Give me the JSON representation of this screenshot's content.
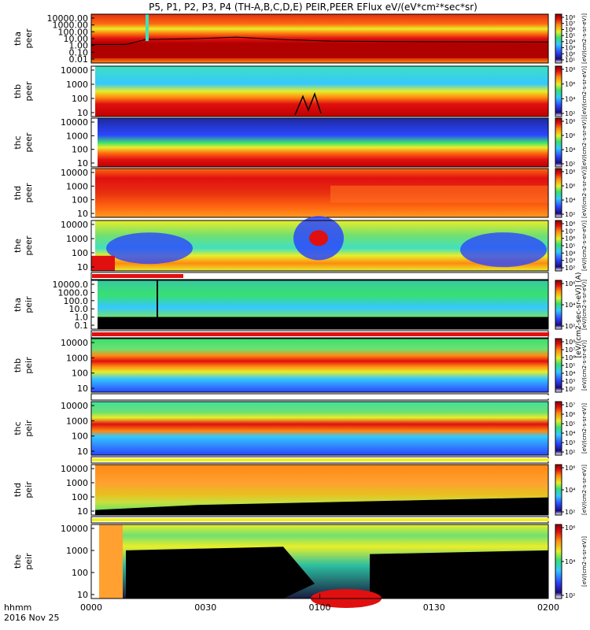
{
  "chart_data": {
    "type": "heatmap",
    "title": "P5, P1, P2, P3, P4 (TH-A,B,C,D,E) PEIR,PEER EFlux eV/(eV*cm²*sec*sr)",
    "x_time_ticks": [
      "0000",
      "0030",
      "0100",
      "0130",
      "0200"
    ],
    "x_axis_label": "hhmm",
    "x_axis_date": "2016 Nov 25",
    "colorbar_unit_label": "[eV/(cm2-s-sr-eV)]",
    "colorbar_side_label": "[eV/(cm2-sec-sr-eV)] (A)",
    "panels": [
      {
        "probe": "tha",
        "species": "peer",
        "yticks": [
          "10000.00",
          "1000.00",
          "100.00",
          "10.00",
          "1.00",
          "0.10",
          "0.01"
        ],
        "cbticks": [
          "10⁸",
          "10⁷",
          "10⁶",
          "10⁵",
          "10⁴",
          "10³",
          "10²",
          "10¹"
        ],
        "cbmin": 1,
        "cbmax": 8
      },
      {
        "probe": "thb",
        "species": "peer",
        "yticks": [
          "10000",
          "1000",
          "100",
          "10"
        ],
        "cbticks": [
          "10⁸",
          "10⁶",
          "10⁴",
          "10²"
        ],
        "cbmin": 1,
        "cbmax": 8
      },
      {
        "probe": "thc",
        "species": "peer",
        "yticks": [
          "10000",
          "1000",
          "100",
          "10"
        ],
        "cbticks": [
          "10⁸",
          "10⁶",
          "10⁴",
          "10²"
        ],
        "cbmin": 1,
        "cbmax": 8
      },
      {
        "probe": "thd",
        "species": "peer",
        "yticks": [
          "10000",
          "1000",
          "100",
          "10"
        ],
        "cbticks": [
          "10⁸",
          "10⁶",
          "10⁴",
          "10²"
        ],
        "cbmin": 1,
        "cbmax": 8
      },
      {
        "probe": "the",
        "species": "peer",
        "yticks": [
          "10000",
          "1000",
          "100",
          "10"
        ],
        "cbticks": [
          "10⁸",
          "10⁷",
          "10⁶",
          "10⁵",
          "10⁴",
          "10³",
          "10²"
        ],
        "cbmin": 2,
        "cbmax": 8
      },
      {
        "probe": "tha",
        "species": "peir",
        "yticks": [
          "10000.0",
          "1000.0",
          "100.0",
          "10.0",
          "1.0",
          "0.1"
        ],
        "cbticks": [
          "10⁶",
          "10⁴",
          "10²"
        ],
        "cbmin": 1,
        "cbmax": 7
      },
      {
        "probe": "thb",
        "species": "peir",
        "yticks": [
          "10000",
          "1000",
          "100",
          "10"
        ],
        "cbticks": [
          "10⁸",
          "10⁷",
          "10⁶",
          "10⁵",
          "10⁴",
          "10³",
          "10²"
        ],
        "cbmin": 2,
        "cbmax": 8
      },
      {
        "probe": "thc",
        "species": "peir",
        "yticks": [
          "10000",
          "1000",
          "100",
          "10"
        ],
        "cbticks": [
          "10⁷",
          "10⁶",
          "10⁵",
          "10⁴",
          "10³",
          "10²"
        ],
        "cbmin": 2,
        "cbmax": 7
      },
      {
        "probe": "thd",
        "species": "peir",
        "yticks": [
          "10000",
          "1000",
          "100",
          "10"
        ],
        "cbticks": [
          "10⁶",
          "10⁴",
          "10²"
        ],
        "cbmin": 1,
        "cbmax": 7
      },
      {
        "probe": "the",
        "species": "peir",
        "yticks": [
          "10000",
          "1000",
          "100",
          "10"
        ],
        "cbticks": [
          "10⁶",
          "10⁴",
          "10²"
        ],
        "cbmin": 1,
        "cbmax": 7
      }
    ],
    "colorscale": [
      "#ffffff",
      "#1c0a78",
      "#2c46ff",
      "#34c8ff",
      "#38e070",
      "#e6ee2a",
      "#ff8c10",
      "#e01010",
      "#8a0000"
    ]
  }
}
